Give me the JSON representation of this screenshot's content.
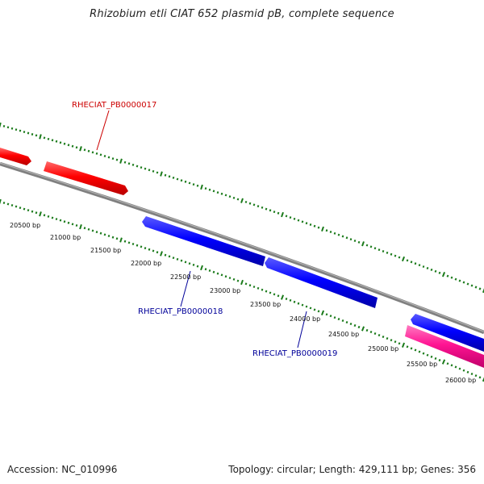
{
  "title": "Rhizobium etli CIAT 652 plasmid pB, complete sequence",
  "footer": {
    "accession": "Accession: NC_010996",
    "summary": "Topology: circular; Length: 429,111 bp; Genes: 356"
  },
  "colors": {
    "backbone": "#808080",
    "tick": "#1a7a1a",
    "gene_red": "#ff0000",
    "gene_blue": "#0000ff",
    "gene_pink": "#ff1493",
    "label_red": "#cc0000",
    "label_blue": "#000099"
  },
  "ruler": {
    "labels": [
      "20500 bp",
      "21000 bp",
      "21500 bp",
      "22000 bp",
      "22500 bp",
      "23000 bp",
      "23500 bp",
      "24000 bp",
      "24500 bp",
      "25000 bp",
      "25500 bp",
      "26000 bp"
    ]
  },
  "gene_labels": [
    {
      "text": "RHECIAT_PB0000017",
      "color": "red"
    },
    {
      "text": "RHECIAT_PB0000018",
      "color": "blue"
    },
    {
      "text": "RHECIAT_PB0000019",
      "color": "blue"
    }
  ]
}
